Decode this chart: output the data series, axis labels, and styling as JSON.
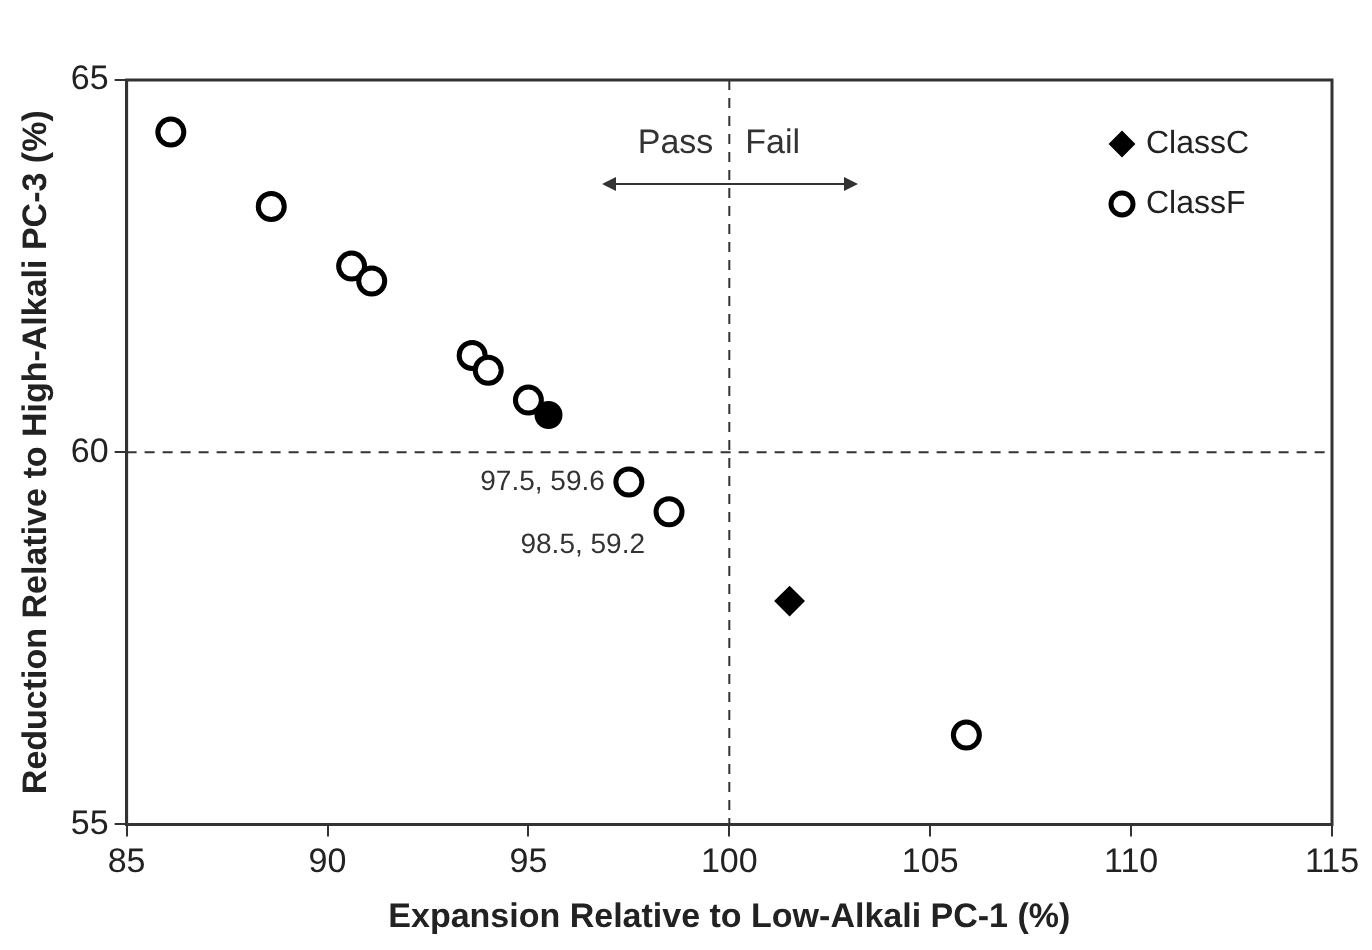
{
  "chart_data": {
    "type": "scatter",
    "xlabel": "Expansion Relative to Low-Alkali PC-1 (%)",
    "ylabel": "Reduction Relative to High-Alkali PC-3 (%)",
    "xlim": [
      85,
      115
    ],
    "xticks": [
      85,
      90,
      95,
      100,
      105,
      110,
      115
    ],
    "ylim": [
      55,
      65
    ],
    "yticks": [
      55,
      60,
      65
    ],
    "grid": false,
    "legend": "top right",
    "series": [
      {
        "name": "ClassC",
        "color": "#000000",
        "marker": "diamond",
        "x": [
          101.5
        ],
        "values": [
          58.0
        ]
      },
      {
        "name": "ClassF",
        "color": "#ffffff",
        "marker": "circle",
        "x": [
          86.1,
          88.6,
          90.6,
          91.1,
          93.6,
          94.0,
          95.0,
          97.5,
          98.5,
          105.9
        ],
        "values": [
          64.3,
          63.3,
          62.5,
          62.3,
          61.3,
          61.1,
          60.7,
          59.6,
          59.2,
          56.2
        ]
      },
      {
        "color": "#000000",
        "marker": "circle",
        "x": [
          95.5
        ],
        "values": [
          60.5
        ]
      }
    ],
    "ref_lines": [
      {
        "axis": "x",
        "value": 100,
        "line_style": "dashed"
      },
      {
        "axis": "y",
        "value": 60,
        "line_style": "dashed"
      }
    ],
    "annotations": [
      {
        "text": "97.5, 59.6",
        "x": 97.5,
        "y": 59.6
      },
      {
        "text": "98.5, 59.2",
        "x": 98.5,
        "y": 59.2
      },
      "Pass",
      "Fail"
    ]
  }
}
